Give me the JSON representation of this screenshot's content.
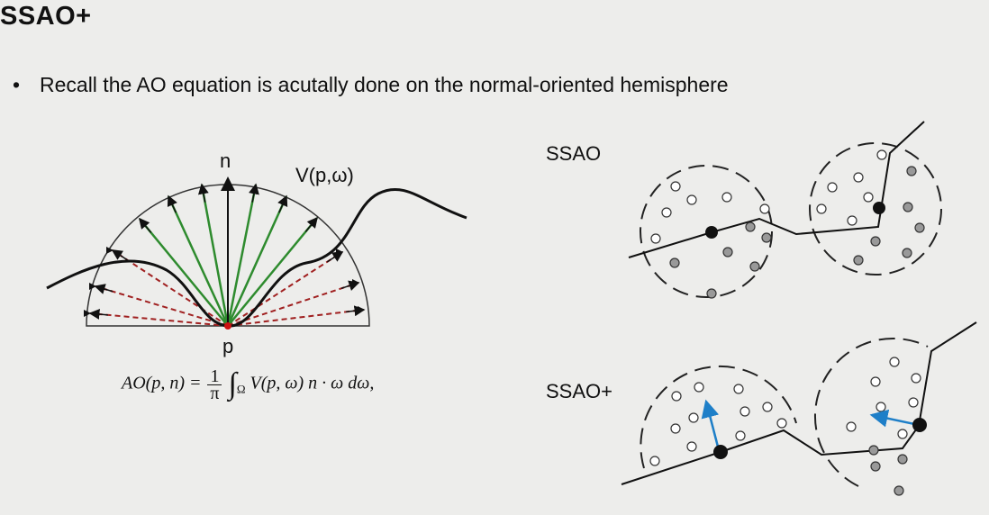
{
  "slide": {
    "title": "SSAO+",
    "bullet": "Recall the AO equation is acutally done on the normal-oriented hemisphere"
  },
  "diagram_left": {
    "normal_label": "n",
    "visibility_label": "V(p,ω)",
    "point_label": "p",
    "colors": {
      "visible_ray": "#2e8b2e",
      "occluded_ray": "#a02020",
      "surface": "#111111"
    }
  },
  "formula": {
    "lhs": "AO(p, n) = ",
    "numerator": "1",
    "denominator": "π",
    "integral": "∫",
    "domain": "Ω",
    "rhs": "V(p, ω) n · ω dω,"
  },
  "diagram_right": {
    "ssao_label": "SSAO",
    "ssao_plus_label": "SSAO+",
    "colors": {
      "normal_arrow": "#1e7fc8",
      "occluded_sample": "#999999"
    }
  }
}
